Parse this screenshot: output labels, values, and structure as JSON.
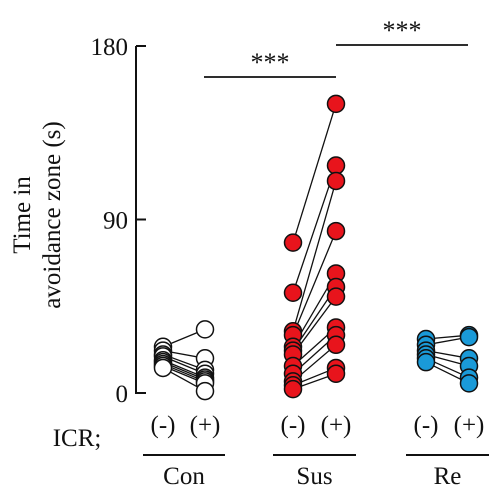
{
  "chart_data": {
    "type": "scatter",
    "title": "",
    "xlabel": "",
    "ylabel_lines": [
      "Time in",
      "avoidance zone (s)"
    ],
    "ylim": [
      0,
      180
    ],
    "yticks": [
      "0",
      "90",
      "180"
    ],
    "row_label": "ICR;",
    "condition_labels": [
      "(-)",
      "(+)"
    ],
    "groups": [
      {
        "name": "Con",
        "color": "#ffffff",
        "pairs": [
          [
            24,
            33
          ],
          [
            22,
            18
          ],
          [
            20,
            12
          ],
          [
            19,
            10
          ],
          [
            17,
            8
          ],
          [
            16,
            7
          ],
          [
            15,
            6
          ],
          [
            14,
            5
          ],
          [
            13,
            1
          ]
        ]
      },
      {
        "name": "Sus",
        "color": "#e8141c",
        "pairs": [
          [
            78,
            150
          ],
          [
            52,
            118
          ],
          [
            32,
            110
          ],
          [
            30,
            84
          ],
          [
            24,
            62
          ],
          [
            22,
            55
          ],
          [
            20,
            50
          ],
          [
            14,
            34
          ],
          [
            10,
            30
          ],
          [
            6,
            25
          ],
          [
            4,
            13
          ],
          [
            2,
            10
          ]
        ]
      },
      {
        "name": "Re",
        "color": "#1a9ad8",
        "pairs": [
          [
            28,
            30
          ],
          [
            25,
            29
          ],
          [
            22,
            18
          ],
          [
            20,
            14
          ],
          [
            18,
            8
          ],
          [
            16,
            5
          ]
        ]
      }
    ],
    "significance": [
      {
        "label": "***",
        "from": "Con",
        "to": "Sus"
      },
      {
        "label": "***",
        "from": "Sus",
        "to": "Re"
      }
    ]
  }
}
